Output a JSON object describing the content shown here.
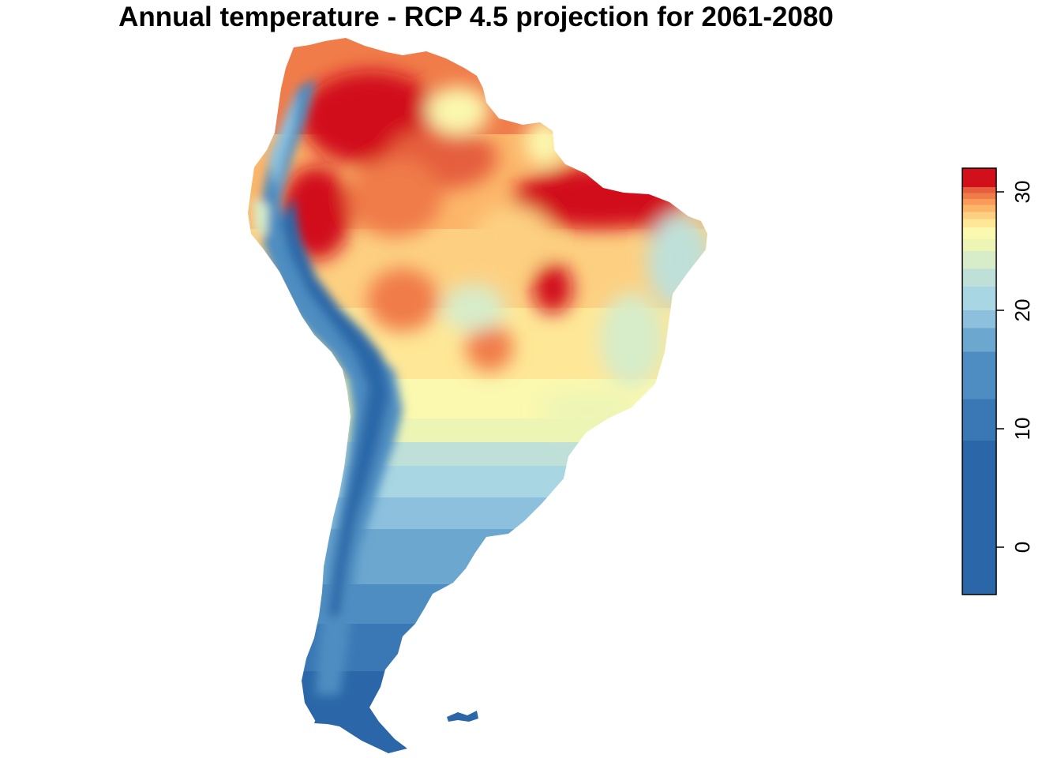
{
  "title": "Annual temperature - RCP 4.5 projection for 2061-2080",
  "colorbar": {
    "min": -4,
    "max": 32,
    "ticks": [
      {
        "value": 0,
        "label": "0"
      },
      {
        "value": 10,
        "label": "10"
      },
      {
        "value": 20,
        "label": "20"
      },
      {
        "value": 30,
        "label": "30"
      }
    ],
    "bins": [
      {
        "from": -4,
        "to": 9,
        "color": "#2B67A8"
      },
      {
        "from": 9,
        "to": 12.5,
        "color": "#3A78B5"
      },
      {
        "from": 12.5,
        "to": 16.5,
        "color": "#4E8DC1"
      },
      {
        "from": 16.5,
        "to": 18.5,
        "color": "#6CA7CF"
      },
      {
        "from": 18.5,
        "to": 20,
        "color": "#8CC0DD"
      },
      {
        "from": 20,
        "to": 22,
        "color": "#A8D6E3"
      },
      {
        "from": 22,
        "to": 23.5,
        "color": "#BFE0D8"
      },
      {
        "from": 23.5,
        "to": 25,
        "color": "#D7ECC9"
      },
      {
        "from": 25,
        "to": 26,
        "color": "#EDF5B5"
      },
      {
        "from": 26,
        "to": 27,
        "color": "#FBF8AF"
      },
      {
        "from": 27,
        "to": 27.7,
        "color": "#FEE797"
      },
      {
        "from": 27.7,
        "to": 28.3,
        "color": "#FDD081"
      },
      {
        "from": 28.3,
        "to": 28.9,
        "color": "#FCB66A"
      },
      {
        "from": 28.9,
        "to": 29.4,
        "color": "#F99A58"
      },
      {
        "from": 29.4,
        "to": 29.9,
        "color": "#F07C4A"
      },
      {
        "from": 29.9,
        "to": 30.4,
        "color": "#E55E3D"
      },
      {
        "from": 30.4,
        "to": 32,
        "color": "#D1101C"
      }
    ]
  },
  "map": {
    "region": "South America",
    "palette": {
      "hot": "#D1101C",
      "warm": "#F07C4A",
      "orange": "#FCB66A",
      "light_orange": "#FDD081",
      "yellow": "#FBF8AF",
      "pale_green": "#D7ECC9",
      "light_blue": "#A8D6E3",
      "blue1": "#8CC0DD",
      "blue2": "#6CA7CF",
      "blue3": "#4E8DC1",
      "blue4": "#3A78B5",
      "cold": "#2B67A8"
    }
  }
}
